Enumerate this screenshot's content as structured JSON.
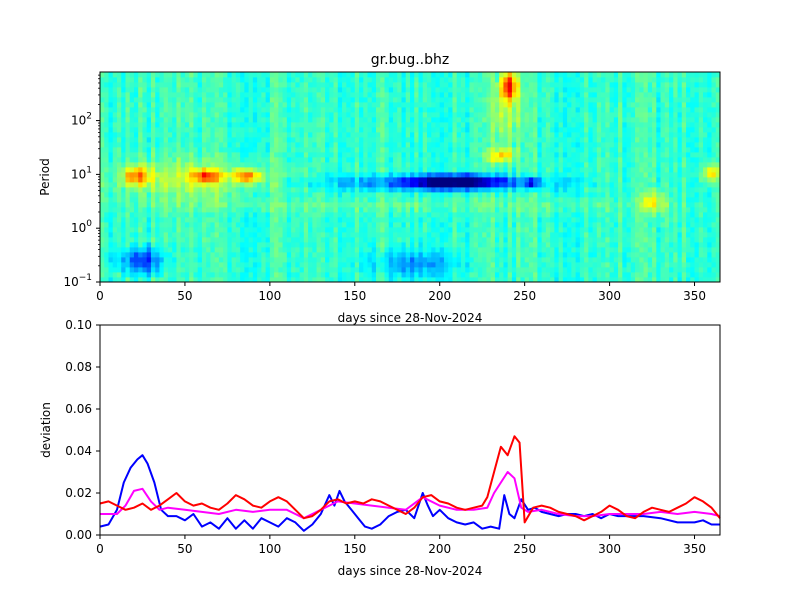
{
  "chart_data": [
    {
      "type": "heatmap",
      "title": "gr.bug..bhz",
      "xlabel": "days since 28-Nov-2024",
      "ylabel": "Period",
      "xlim": [
        0,
        365
      ],
      "ylim": [
        0.1,
        800
      ],
      "yscale": "log",
      "x_ticks": [
        0,
        50,
        100,
        150,
        200,
        250,
        300,
        350
      ],
      "y_ticks": [
        {
          "value": 0.1,
          "mant": "10",
          "exp": "−1"
        },
        {
          "value": 1,
          "mant": "10",
          "exp": "0"
        },
        {
          "value": 10,
          "mant": "10",
          "exp": "1"
        },
        {
          "value": 100,
          "mant": "10",
          "exp": "2"
        }
      ],
      "colormap": "jet",
      "color_range": [
        -1,
        1
      ],
      "background_level": -0.15,
      "features": [
        {
          "x": [
            14,
            30
          ],
          "logp": [
            0.8,
            1.15
          ],
          "level": 0.55
        },
        {
          "x": [
            53,
            72
          ],
          "logp": [
            0.85,
            1.1
          ],
          "level": 0.6
        },
        {
          "x": [
            78,
            95
          ],
          "logp": [
            0.85,
            1.1
          ],
          "level": 0.65
        },
        {
          "x": [
            5,
            100
          ],
          "logp": [
            0.55,
            1.3
          ],
          "level": 0.25
        },
        {
          "x": [
            135,
            262
          ],
          "logp": [
            0.7,
            1.0
          ],
          "level": -0.45
        },
        {
          "x": [
            185,
            238
          ],
          "logp": [
            0.75,
            1.0
          ],
          "level": -0.7
        },
        {
          "x": [
            250,
            258
          ],
          "logp": [
            0.75,
            0.95
          ],
          "level": -0.6
        },
        {
          "x": [
            228,
            245
          ],
          "logp": [
            1.2,
            1.5
          ],
          "level": 0.5
        },
        {
          "x": [
            236,
            246
          ],
          "logp": [
            2.4,
            2.9
          ],
          "level": 0.75
        },
        {
          "x": [
            230,
            248
          ],
          "logp": [
            1.6,
            2.9
          ],
          "level": 0.3
        },
        {
          "x": [
            318,
            333
          ],
          "logp": [
            0.3,
            0.7
          ],
          "level": 0.35
        },
        {
          "x": [
            355,
            365
          ],
          "logp": [
            0.85,
            1.2
          ],
          "level": 0.5
        },
        {
          "x": [
            12,
            38
          ],
          "logp": [
            -0.85,
            -0.35
          ],
          "level": -0.5
        },
        {
          "x": [
            160,
            210
          ],
          "logp": [
            -0.9,
            -0.4
          ],
          "level": -0.3
        },
        {
          "x": [
            0,
            365
          ],
          "logp": [
            0.3,
            0.55
          ],
          "level": 0.1
        }
      ]
    },
    {
      "type": "line",
      "xlabel": "days since 28-Nov-2024",
      "ylabel": "deviation",
      "xlim": [
        0,
        365
      ],
      "ylim": [
        0,
        0.1
      ],
      "x_ticks": [
        0,
        50,
        100,
        150,
        200,
        250,
        300,
        350
      ],
      "y_ticks": [
        0.0,
        0.02,
        0.04,
        0.06,
        0.08,
        0.1
      ],
      "y_tick_labels": [
        "0.00",
        "0.02",
        "0.04",
        "0.06",
        "0.08",
        "0.10"
      ],
      "series": [
        {
          "name": "blue",
          "color": "#0000ff",
          "x": [
            0,
            5,
            10,
            14,
            18,
            22,
            25,
            28,
            32,
            36,
            40,
            45,
            50,
            55,
            60,
            65,
            70,
            75,
            80,
            85,
            90,
            95,
            100,
            105,
            110,
            115,
            120,
            125,
            130,
            135,
            138,
            141,
            144,
            148,
            152,
            156,
            160,
            165,
            170,
            175,
            180,
            185,
            190,
            193,
            196,
            200,
            205,
            210,
            215,
            220,
            225,
            230,
            235,
            238,
            241,
            244,
            248,
            252,
            256,
            260,
            265,
            270,
            275,
            280,
            285,
            290,
            295,
            300,
            305,
            310,
            320,
            330,
            340,
            350,
            355,
            360,
            365
          ],
          "values": [
            0.004,
            0.005,
            0.012,
            0.025,
            0.032,
            0.036,
            0.038,
            0.034,
            0.025,
            0.012,
            0.009,
            0.009,
            0.007,
            0.01,
            0.004,
            0.006,
            0.003,
            0.008,
            0.003,
            0.007,
            0.003,
            0.008,
            0.006,
            0.004,
            0.008,
            0.006,
            0.002,
            0.005,
            0.01,
            0.019,
            0.014,
            0.021,
            0.016,
            0.012,
            0.008,
            0.004,
            0.003,
            0.005,
            0.009,
            0.011,
            0.012,
            0.008,
            0.02,
            0.014,
            0.009,
            0.012,
            0.008,
            0.006,
            0.005,
            0.006,
            0.003,
            0.004,
            0.003,
            0.019,
            0.01,
            0.008,
            0.017,
            0.012,
            0.013,
            0.011,
            0.01,
            0.009,
            0.01,
            0.01,
            0.009,
            0.01,
            0.008,
            0.01,
            0.009,
            0.009,
            0.009,
            0.008,
            0.006,
            0.006,
            0.007,
            0.005,
            0.005
          ]
        },
        {
          "name": "magenta",
          "color": "#ff00ff",
          "x": [
            0,
            10,
            15,
            20,
            25,
            30,
            35,
            40,
            50,
            60,
            70,
            80,
            90,
            100,
            110,
            115,
            120,
            125,
            130,
            135,
            140,
            150,
            160,
            170,
            180,
            190,
            200,
            210,
            220,
            228,
            232,
            236,
            240,
            244,
            248,
            252,
            260,
            270,
            280,
            290,
            300,
            310,
            320,
            330,
            340,
            350,
            360,
            365
          ],
          "values": [
            0.01,
            0.01,
            0.014,
            0.021,
            0.022,
            0.016,
            0.012,
            0.013,
            0.012,
            0.011,
            0.01,
            0.012,
            0.011,
            0.012,
            0.012,
            0.01,
            0.008,
            0.01,
            0.012,
            0.014,
            0.016,
            0.015,
            0.014,
            0.013,
            0.012,
            0.018,
            0.014,
            0.012,
            0.012,
            0.013,
            0.02,
            0.025,
            0.03,
            0.027,
            0.013,
            0.011,
            0.012,
            0.01,
            0.009,
            0.009,
            0.01,
            0.01,
            0.01,
            0.011,
            0.01,
            0.011,
            0.01,
            0.009
          ]
        },
        {
          "name": "red",
          "color": "#ff0000",
          "x": [
            0,
            5,
            10,
            15,
            20,
            25,
            30,
            35,
            40,
            45,
            50,
            55,
            60,
            65,
            70,
            75,
            80,
            85,
            90,
            95,
            100,
            105,
            110,
            115,
            120,
            125,
            130,
            135,
            140,
            145,
            150,
            155,
            160,
            165,
            170,
            175,
            180,
            185,
            190,
            195,
            200,
            205,
            210,
            215,
            220,
            225,
            228,
            232,
            236,
            240,
            244,
            247,
            250,
            255,
            260,
            265,
            270,
            275,
            280,
            285,
            290,
            295,
            300,
            305,
            310,
            315,
            320,
            325,
            330,
            335,
            340,
            345,
            350,
            355,
            360,
            365
          ],
          "values": [
            0.015,
            0.016,
            0.014,
            0.012,
            0.013,
            0.015,
            0.012,
            0.014,
            0.017,
            0.02,
            0.016,
            0.014,
            0.015,
            0.013,
            0.012,
            0.015,
            0.019,
            0.017,
            0.014,
            0.013,
            0.016,
            0.018,
            0.016,
            0.012,
            0.008,
            0.009,
            0.012,
            0.016,
            0.017,
            0.015,
            0.016,
            0.015,
            0.017,
            0.016,
            0.014,
            0.012,
            0.01,
            0.013,
            0.018,
            0.019,
            0.016,
            0.015,
            0.013,
            0.012,
            0.013,
            0.014,
            0.018,
            0.03,
            0.042,
            0.038,
            0.047,
            0.044,
            0.006,
            0.013,
            0.014,
            0.013,
            0.011,
            0.01,
            0.009,
            0.007,
            0.009,
            0.011,
            0.014,
            0.012,
            0.009,
            0.008,
            0.011,
            0.013,
            0.012,
            0.011,
            0.013,
            0.015,
            0.018,
            0.016,
            0.013,
            0.008
          ]
        }
      ]
    }
  ]
}
